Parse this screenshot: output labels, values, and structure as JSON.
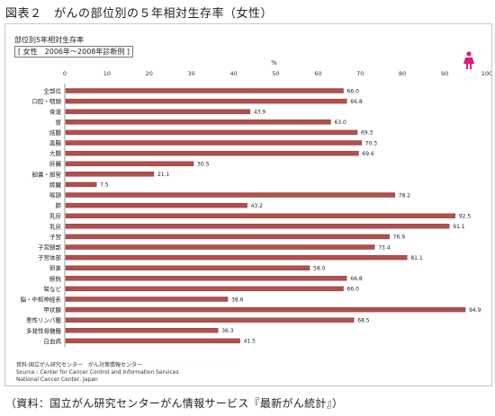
{
  "figure_title": "図表２　がんの部位別の５年相対生存率（女性）",
  "subtitle_line1": "部位別5年相対生存率",
  "subtitle_line2": "[ 女性　2006年～2008年診断例 ]",
  "source_lines": [
    "資料:国立がん研究センター　がん対策情報センター",
    "Source : Center for Cancer Control and Information Services",
    "National Cancer Center, Japan"
  ],
  "footer_text": "（資料：国立がん研究センターがん情報サービス『最新がん統計』）",
  "icon": "female-icon",
  "colors": {
    "bar": "#b0504d",
    "bar_edge": "#7e2f2d",
    "icon": "#e0197a",
    "axis": "#999999",
    "text": "#222222"
  },
  "chart_data": {
    "type": "bar",
    "orientation": "horizontal",
    "title": "部位別5年相対生存率",
    "x_unit": "%",
    "xlim": [
      0,
      100
    ],
    "x_ticks": [
      0,
      10,
      20,
      30,
      40,
      50,
      60,
      70,
      80,
      90,
      100
    ],
    "categories": [
      "全部位",
      "口腔・咽頭",
      "食道",
      "胃",
      "結腸",
      "直腸",
      "大腸",
      "肝臓",
      "胆嚢・胆管",
      "膵臓",
      "喉頭",
      "肺",
      "乳房",
      "乳房",
      "子宮",
      "子宮頸部",
      "子宮体部",
      "卵巣",
      "膀胱",
      "腎など",
      "脳・中枢神経系",
      "甲状腺",
      "悪性リンパ腫",
      "多発性骨髄腫",
      "白血病"
    ],
    "values": [
      66.0,
      66.8,
      43.9,
      63.0,
      69.3,
      70.3,
      69.6,
      30.5,
      21.1,
      7.5,
      78.2,
      43.2,
      92.5,
      91.1,
      76.9,
      73.4,
      81.1,
      58.0,
      66.8,
      66.0,
      38.6,
      94.9,
      68.5,
      36.3,
      41.5
    ],
    "value_labels": [
      "66.0",
      "66.8",
      "43.9",
      "63.0",
      "69.3",
      "70.3",
      "69.6",
      "30.5",
      "21.1",
      "7.5",
      "78.2",
      "43.2",
      "92.5",
      "91.1",
      "76.9",
      "73.4",
      "81.1",
      "58.0",
      "66.8",
      "66.0",
      "38.6",
      "94.9",
      "68.5",
      "36.3",
      "41.5"
    ],
    "grid": false,
    "legend": "none"
  }
}
